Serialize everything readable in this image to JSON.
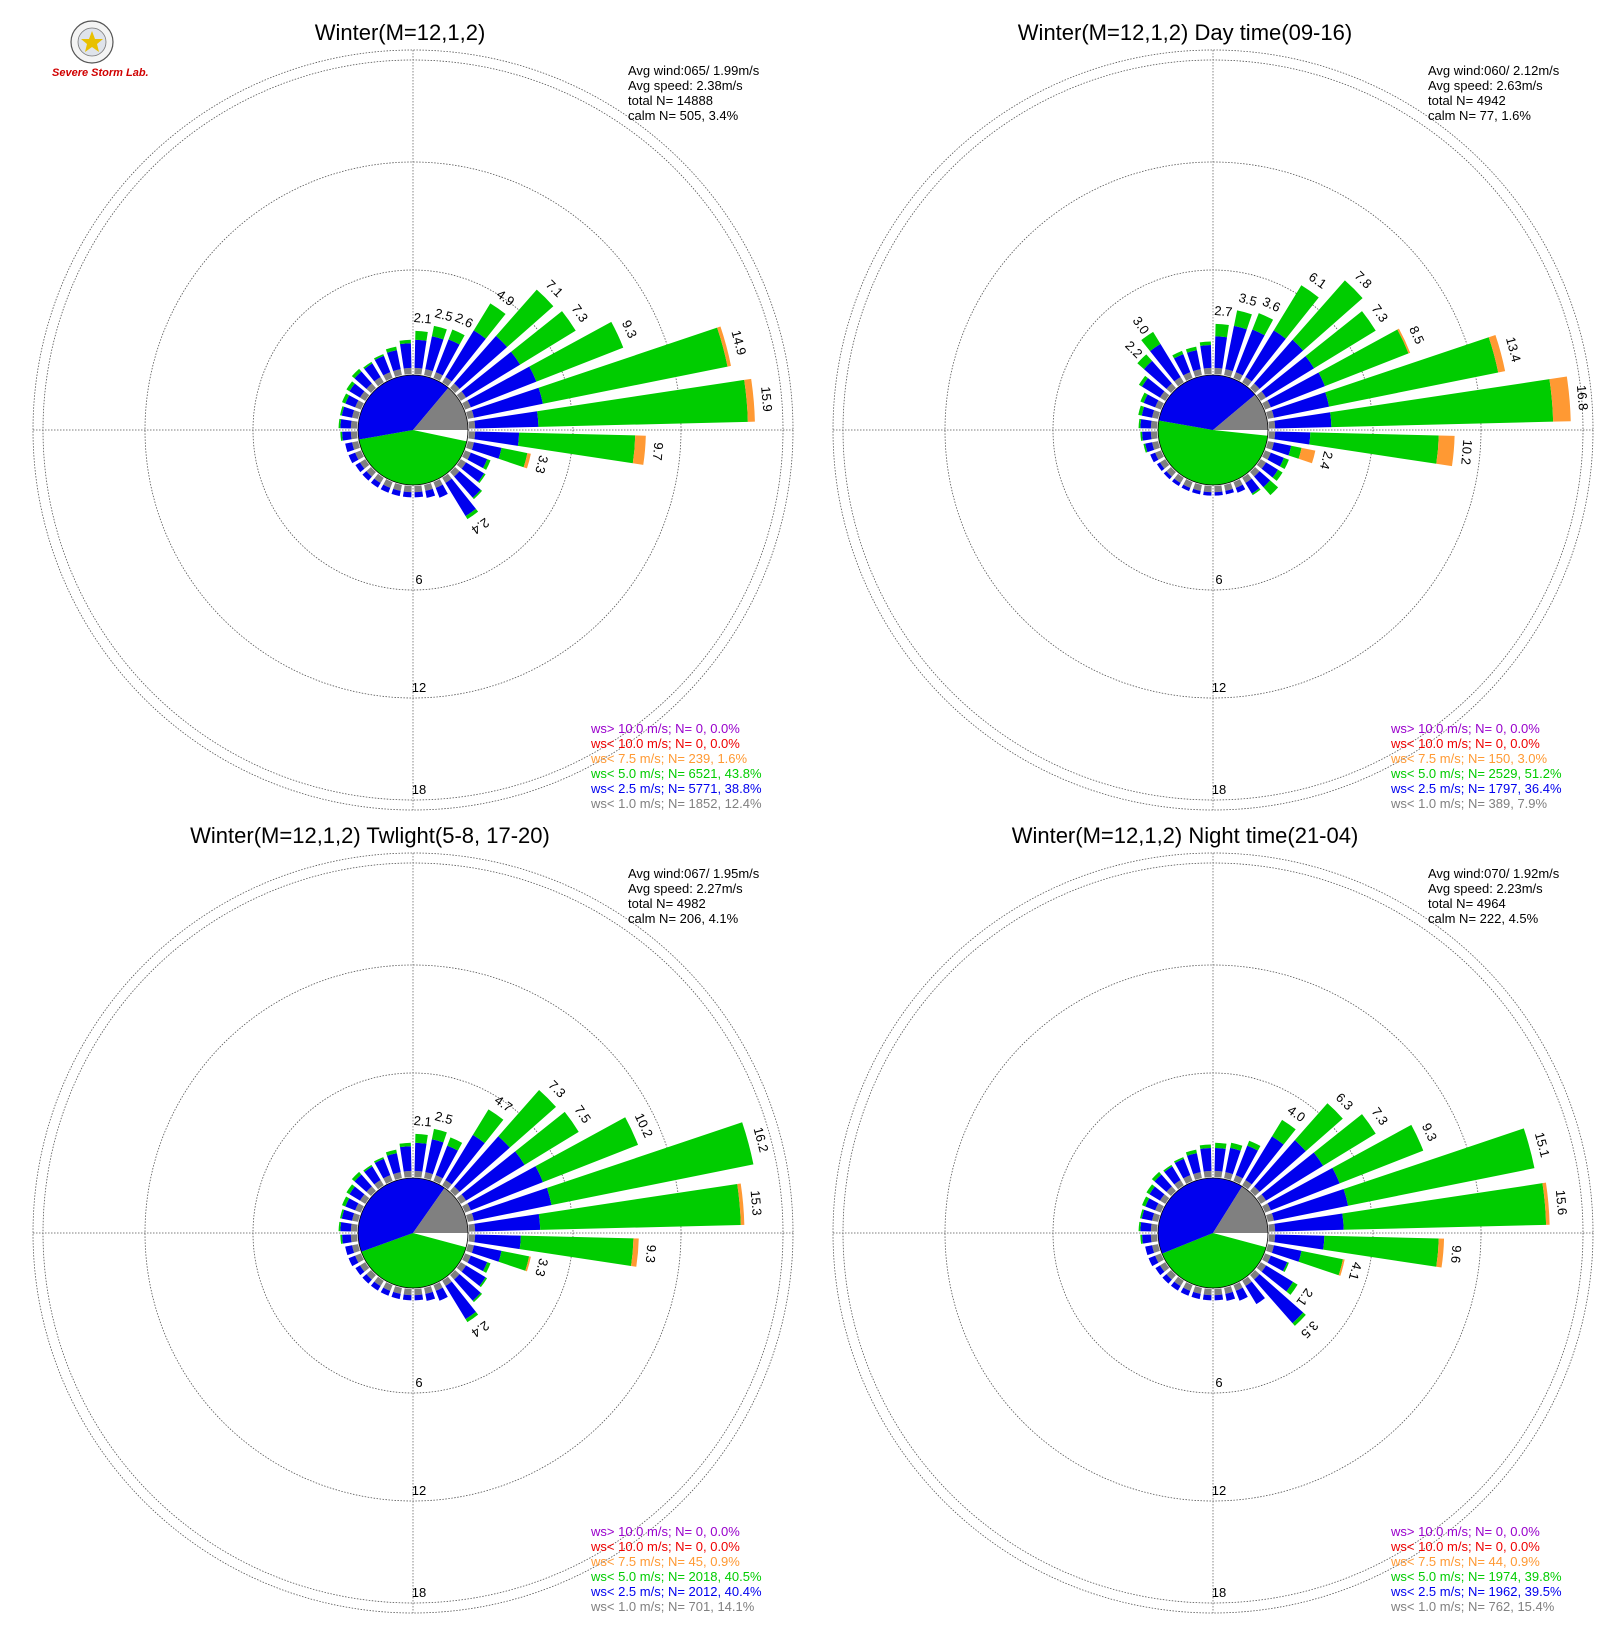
{
  "logo": {
    "text": "Severe Storm Lab."
  },
  "colors": {
    "calm": "#ffffff",
    "lt1": "#808080",
    "lt2_5": "#0000ee",
    "lt5": "#00cc00",
    "lt7_5": "#ff9933",
    "lt10": "#ee0000",
    "gt10": "#9900cc"
  },
  "chart_data": [
    {
      "type": "windrose",
      "title": "Winter(M=12,1,2)",
      "stats": {
        "avg_wind": "Avg wind:065/ 1.99m/s",
        "avg_speed": "Avg speed: 2.38m/s",
        "total": "total N=      14888",
        "calm": "calm N=    505,   3.4%"
      },
      "radial_ticks": [
        6,
        12,
        18
      ],
      "radial_max": 18,
      "legend": [
        {
          "label": "ws> 10.0 m/s; N=     0,  0.0%",
          "color": "#9900cc"
        },
        {
          "label": "ws< 10.0 m/s; N=     0,  0.0%",
          "color": "#ee0000"
        },
        {
          "label": "ws<  7.5 m/s; N=   239,  1.6%",
          "color": "#ff9933"
        },
        {
          "label": "ws<  5.0 m/s; N=  6521, 43.8%",
          "color": "#00cc00"
        },
        {
          "label": "ws<  2.5 m/s; N=  5771, 38.8%",
          "color": "#0000ee"
        },
        {
          "label": "ws<  1.0 m/s; N=  1852, 12.4%",
          "color": "#808080"
        }
      ],
      "center_pie": [
        {
          "color": "#ffffff",
          "start": 90,
          "end": 102
        },
        {
          "color": "#00cc00",
          "start": 102,
          "end": 260
        },
        {
          "color": "#0000ee",
          "start": 260,
          "end": 400
        },
        {
          "color": "#808080",
          "start": 400,
          "end": 450
        }
      ],
      "bars": [
        {
          "dir": 5,
          "blue": 1.6,
          "green": 0.5,
          "label": "2.1"
        },
        {
          "dir": 15,
          "blue": 1.9,
          "green": 0.6,
          "label": "2.5"
        },
        {
          "dir": 25,
          "blue": 2.0,
          "green": 0.6,
          "label": "2.6"
        },
        {
          "dir": 35,
          "blue": 3.1,
          "green": 1.8,
          "label": "4.9"
        },
        {
          "dir": 45,
          "blue": 3.6,
          "green": 3.5,
          "label": "7.1"
        },
        {
          "dir": 55,
          "blue": 3.6,
          "green": 3.7,
          "label": "7.3"
        },
        {
          "dir": 65,
          "blue": 4.0,
          "green": 5.3,
          "label": "9.3"
        },
        {
          "dir": 75,
          "blue": 4.0,
          "green": 10.7,
          "orange": 0.2,
          "label": "14.9"
        },
        {
          "dir": 85,
          "blue": 3.6,
          "green": 11.9,
          "orange": 0.4,
          "label": "15.9"
        },
        {
          "dir": 95,
          "blue": 2.5,
          "green": 6.6,
          "orange": 0.6,
          "label": "9.7"
        },
        {
          "dir": 105,
          "blue": 1.6,
          "green": 1.5,
          "orange": 0.2,
          "label": "3.3"
        },
        {
          "dir": 115,
          "blue": 1.0,
          "green": 0.2
        },
        {
          "dir": 125,
          "blue": 1.2,
          "green": 0.1
        },
        {
          "dir": 135,
          "blue": 1.6,
          "green": 0.1
        },
        {
          "dir": 145,
          "blue": 2.2,
          "green": 0.2,
          "label": "2.4"
        },
        {
          "dir": 155,
          "blue": 0.6
        },
        {
          "dir": 165,
          "blue": 0.4
        },
        {
          "dir": 175,
          "blue": 0.3
        },
        {
          "dir": 185,
          "blue": 0.3
        },
        {
          "dir": 195,
          "blue": 0.3
        },
        {
          "dir": 205,
          "blue": 0.3
        },
        {
          "dir": 215,
          "blue": 0.3
        },
        {
          "dir": 225,
          "blue": 0.3
        },
        {
          "dir": 235,
          "blue": 0.3
        },
        {
          "dir": 245,
          "blue": 0.4
        },
        {
          "dir": 255,
          "blue": 0.4
        },
        {
          "dir": 265,
          "blue": 0.5,
          "green": 0.1
        },
        {
          "dir": 275,
          "blue": 0.6,
          "green": 0.1
        },
        {
          "dir": 285,
          "blue": 0.6,
          "green": 0.1
        },
        {
          "dir": 295,
          "blue": 0.6,
          "green": 0.2
        },
        {
          "dir": 305,
          "blue": 0.7,
          "green": 0.2
        },
        {
          "dir": 315,
          "blue": 0.9,
          "green": 0.2
        },
        {
          "dir": 325,
          "blue": 0.9,
          "green": 0.1
        },
        {
          "dir": 335,
          "blue": 1.0,
          "green": 0.1
        },
        {
          "dir": 345,
          "blue": 1.1,
          "green": 0.2
        },
        {
          "dir": 355,
          "blue": 1.4,
          "green": 0.2
        }
      ]
    },
    {
      "type": "windrose",
      "title": "Winter(M=12,1,2) Day time(09-16)",
      "stats": {
        "avg_wind": "Avg wind:060/ 2.12m/s",
        "avg_speed": "Avg speed: 2.63m/s",
        "total": "total N=        4942",
        "calm": "calm N=     77,   1.6%"
      },
      "radial_ticks": [
        6,
        12,
        18
      ],
      "radial_max": 18,
      "legend": [
        {
          "label": "ws> 10.0 m/s; N=     0,  0.0%",
          "color": "#9900cc"
        },
        {
          "label": "ws< 10.0 m/s; N=     0,  0.0%",
          "color": "#ee0000"
        },
        {
          "label": "ws<  7.5 m/s; N=   150,  3.0%",
          "color": "#ff9933"
        },
        {
          "label": "ws<  5.0 m/s; N=  2529, 51.2%",
          "color": "#00cc00"
        },
        {
          "label": "ws<  2.5 m/s; N=  1797, 36.4%",
          "color": "#0000ee"
        },
        {
          "label": "ws<  1.0 m/s; N=   389,  7.9%",
          "color": "#808080"
        }
      ],
      "center_pie": [
        {
          "color": "#ffffff",
          "start": 90,
          "end": 96
        },
        {
          "color": "#00cc00",
          "start": 96,
          "end": 280
        },
        {
          "color": "#0000ee",
          "start": 280,
          "end": 410
        },
        {
          "color": "#808080",
          "start": 410,
          "end": 450
        }
      ],
      "bars": [
        {
          "dir": 5,
          "blue": 1.8,
          "green": 0.7,
          "label": "2.7"
        },
        {
          "dir": 15,
          "blue": 2.5,
          "green": 0.9,
          "label": "3.5"
        },
        {
          "dir": 25,
          "blue": 2.6,
          "green": 1.0,
          "label": "3.6"
        },
        {
          "dir": 35,
          "blue": 3.1,
          "green": 3.0,
          "label": "6.1"
        },
        {
          "dir": 45,
          "blue": 3.3,
          "green": 4.5,
          "label": "7.8"
        },
        {
          "dir": 55,
          "blue": 3.2,
          "green": 4.1,
          "label": "7.3"
        },
        {
          "dir": 65,
          "blue": 3.3,
          "green": 5.1,
          "orange": 0.1,
          "label": "8.5"
        },
        {
          "dir": 75,
          "blue": 3.2,
          "green": 9.8,
          "orange": 0.4,
          "label": "13.4"
        },
        {
          "dir": 85,
          "blue": 3.2,
          "green": 12.6,
          "orange": 1.0,
          "label": "16.8"
        },
        {
          "dir": 95,
          "blue": 2.0,
          "green": 7.3,
          "orange": 0.9,
          "label": "10.2"
        },
        {
          "dir": 105,
          "blue": 1.0,
          "green": 0.6,
          "orange": 0.8,
          "label": "2.4"
        },
        {
          "dir": 115,
          "blue": 0.8,
          "green": 0.3
        },
        {
          "dir": 125,
          "blue": 0.8,
          "green": 0.3
        },
        {
          "dir": 135,
          "blue": 0.8,
          "green": 0.6
        },
        {
          "dir": 145,
          "blue": 0.7,
          "green": 0.1
        },
        {
          "dir": 155,
          "blue": 0.3
        },
        {
          "dir": 165,
          "blue": 0.2
        },
        {
          "dir": 175,
          "blue": 0.2
        },
        {
          "dir": 185,
          "blue": 0.2
        },
        {
          "dir": 195,
          "blue": 0.2
        },
        {
          "dir": 205,
          "blue": 0.2
        },
        {
          "dir": 215,
          "blue": 0.2
        },
        {
          "dir": 225,
          "blue": 0.2
        },
        {
          "dir": 235,
          "blue": 0.2
        },
        {
          "dir": 245,
          "blue": 0.3
        },
        {
          "dir": 255,
          "blue": 0.4,
          "green": 0.1
        },
        {
          "dir": 265,
          "blue": 0.5,
          "green": 0.1
        },
        {
          "dir": 275,
          "blue": 0.6,
          "green": 0.1
        },
        {
          "dir": 285,
          "blue": 0.6,
          "green": 0.2
        },
        {
          "dir": 295,
          "blue": 0.7,
          "green": 0.2
        },
        {
          "dir": 305,
          "blue": 1.2,
          "green": 0.2
        },
        {
          "dir": 315,
          "blue": 1.7,
          "green": 0.5,
          "label": "2.2"
        },
        {
          "dir": 325,
          "blue": 2.2,
          "green": 0.8,
          "label": "3.0"
        },
        {
          "dir": 335,
          "blue": 1.1,
          "green": 0.2
        },
        {
          "dir": 345,
          "blue": 1.1,
          "green": 0.2
        },
        {
          "dir": 355,
          "blue": 1.3,
          "green": 0.2
        }
      ]
    },
    {
      "type": "windrose",
      "title": "Winter(M=12,1,2) Twlight(5-8, 17-20)",
      "stats": {
        "avg_wind": "Avg wind:067/ 1.95m/s",
        "avg_speed": "Avg speed: 2.27m/s",
        "total": "total N=        4982",
        "calm": "calm N=    206,   4.1%"
      },
      "radial_ticks": [
        6,
        12,
        18
      ],
      "radial_max": 18,
      "legend": [
        {
          "label": "ws> 10.0 m/s; N=     0,  0.0%",
          "color": "#9900cc"
        },
        {
          "label": "ws< 10.0 m/s; N=     0,  0.0%",
          "color": "#ee0000"
        },
        {
          "label": "ws<  7.5 m/s; N=    45,  0.9%",
          "color": "#ff9933"
        },
        {
          "label": "ws<  5.0 m/s; N=  2018, 40.5%",
          "color": "#00cc00"
        },
        {
          "label": "ws<  2.5 m/s; N=  2012, 40.4%",
          "color": "#0000ee"
        },
        {
          "label": "ws<  1.0 m/s; N=   701, 14.1%",
          "color": "#808080"
        }
      ],
      "center_pie": [
        {
          "color": "#ffffff",
          "start": 90,
          "end": 105
        },
        {
          "color": "#00cc00",
          "start": 105,
          "end": 250
        },
        {
          "color": "#0000ee",
          "start": 250,
          "end": 395
        },
        {
          "color": "#808080",
          "start": 395,
          "end": 450
        }
      ],
      "bars": [
        {
          "dir": 5,
          "blue": 1.6,
          "green": 0.5,
          "label": "2.1"
        },
        {
          "dir": 15,
          "blue": 1.9,
          "green": 0.6,
          "label": "2.5"
        },
        {
          "dir": 25,
          "blue": 1.8,
          "green": 0.5
        },
        {
          "dir": 35,
          "blue": 3.0,
          "green": 1.7,
          "label": "4.7"
        },
        {
          "dir": 45,
          "blue": 3.8,
          "green": 3.5,
          "label": "7.3"
        },
        {
          "dir": 55,
          "blue": 3.9,
          "green": 3.6,
          "label": "7.5"
        },
        {
          "dir": 65,
          "blue": 4.4,
          "green": 5.8,
          "label": "10.2"
        },
        {
          "dir": 75,
          "blue": 4.5,
          "green": 11.7,
          "label": "16.2"
        },
        {
          "dir": 85,
          "blue": 3.7,
          "green": 11.4,
          "orange": 0.2,
          "label": "15.3"
        },
        {
          "dir": 95,
          "blue": 2.6,
          "green": 6.4,
          "orange": 0.3,
          "label": "9.3"
        },
        {
          "dir": 105,
          "blue": 1.6,
          "green": 1.6,
          "orange": 0.1,
          "label": "3.3"
        },
        {
          "dir": 115,
          "blue": 1.0,
          "green": 0.2
        },
        {
          "dir": 125,
          "blue": 1.3,
          "green": 0.1
        },
        {
          "dir": 135,
          "blue": 1.6,
          "green": 0.1
        },
        {
          "dir": 145,
          "blue": 2.2,
          "green": 0.2,
          "label": "2.4"
        },
        {
          "dir": 155,
          "blue": 0.6
        },
        {
          "dir": 165,
          "blue": 0.4
        },
        {
          "dir": 175,
          "blue": 0.3
        },
        {
          "dir": 185,
          "blue": 0.3
        },
        {
          "dir": 195,
          "blue": 0.3
        },
        {
          "dir": 205,
          "blue": 0.3
        },
        {
          "dir": 215,
          "blue": 0.3
        },
        {
          "dir": 225,
          "blue": 0.3
        },
        {
          "dir": 235,
          "blue": 0.3
        },
        {
          "dir": 245,
          "blue": 0.4
        },
        {
          "dir": 255,
          "blue": 0.4
        },
        {
          "dir": 265,
          "blue": 0.5,
          "green": 0.1
        },
        {
          "dir": 275,
          "blue": 0.6,
          "green": 0.1
        },
        {
          "dir": 285,
          "blue": 0.6,
          "green": 0.1
        },
        {
          "dir": 295,
          "blue": 0.6,
          "green": 0.2
        },
        {
          "dir": 305,
          "blue": 0.7,
          "green": 0.2
        },
        {
          "dir": 315,
          "blue": 0.9,
          "green": 0.2
        },
        {
          "dir": 325,
          "blue": 0.9,
          "green": 0.1
        },
        {
          "dir": 335,
          "blue": 1.0,
          "green": 0.1
        },
        {
          "dir": 345,
          "blue": 1.1,
          "green": 0.2
        },
        {
          "dir": 355,
          "blue": 1.4,
          "green": 0.2
        }
      ]
    },
    {
      "type": "windrose",
      "title": "Winter(M=12,1,2) Night time(21-04)",
      "stats": {
        "avg_wind": "Avg wind:070/ 1.92m/s",
        "avg_speed": "Avg speed: 2.23m/s",
        "total": "total N=        4964",
        "calm": "calm N=    222,   4.5%"
      },
      "radial_ticks": [
        6,
        12,
        18
      ],
      "radial_max": 18,
      "legend": [
        {
          "label": "ws> 10.0 m/s; N=     0,  0.0%",
          "color": "#9900cc"
        },
        {
          "label": "ws< 10.0 m/s; N=     0,  0.0%",
          "color": "#ee0000"
        },
        {
          "label": "ws<  7.5 m/s; N=    44,  0.9%",
          "color": "#ff9933"
        },
        {
          "label": "ws<  5.0 m/s; N=  1974, 39.8%",
          "color": "#00cc00"
        },
        {
          "label": "ws<  2.5 m/s; N=  1962, 39.5%",
          "color": "#0000ee"
        },
        {
          "label": "ws<  1.0 m/s; N=   762, 15.4%",
          "color": "#808080"
        }
      ],
      "center_pie": [
        {
          "color": "#ffffff",
          "start": 90,
          "end": 105
        },
        {
          "color": "#00cc00",
          "start": 105,
          "end": 248
        },
        {
          "color": "#0000ee",
          "start": 248,
          "end": 392
        },
        {
          "color": "#808080",
          "start": 392,
          "end": 450
        }
      ],
      "bars": [
        {
          "dir": 5,
          "blue": 1.3,
          "green": 0.3
        },
        {
          "dir": 15,
          "blue": 1.4,
          "green": 0.3
        },
        {
          "dir": 25,
          "blue": 1.8,
          "green": 0.3
        },
        {
          "dir": 35,
          "blue": 2.9,
          "green": 1.1,
          "label": "4.0"
        },
        {
          "dir": 45,
          "blue": 3.5,
          "green": 2.8,
          "label": "6.3"
        },
        {
          "dir": 55,
          "blue": 3.8,
          "green": 3.5,
          "label": "7.3"
        },
        {
          "dir": 65,
          "blue": 4.2,
          "green": 5.1,
          "label": "9.3"
        },
        {
          "dir": 75,
          "blue": 4.3,
          "green": 10.8,
          "label": "15.1"
        },
        {
          "dir": 85,
          "blue": 3.9,
          "green": 11.5,
          "orange": 0.2,
          "label": "15.6"
        },
        {
          "dir": 95,
          "blue": 2.8,
          "green": 6.5,
          "orange": 0.3,
          "label": "9.6"
        },
        {
          "dir": 105,
          "blue": 1.6,
          "green": 2.4,
          "orange": 0.1,
          "label": "4.1"
        },
        {
          "dir": 115,
          "blue": 1.0,
          "green": 0.1
        },
        {
          "dir": 125,
          "blue": 1.8,
          "green": 0.3,
          "label": "2.1"
        },
        {
          "dir": 135,
          "blue": 3.3,
          "green": 0.2,
          "label": "3.5"
        },
        {
          "dir": 145,
          "blue": 1.2
        },
        {
          "dir": 155,
          "blue": 0.6
        },
        {
          "dir": 165,
          "blue": 0.4
        },
        {
          "dir": 175,
          "blue": 0.3
        },
        {
          "dir": 185,
          "blue": 0.3
        },
        {
          "dir": 195,
          "blue": 0.3
        },
        {
          "dir": 205,
          "blue": 0.3
        },
        {
          "dir": 215,
          "blue": 0.3
        },
        {
          "dir": 225,
          "blue": 0.3
        },
        {
          "dir": 235,
          "blue": 0.3
        },
        {
          "dir": 245,
          "blue": 0.4
        },
        {
          "dir": 255,
          "blue": 0.4
        },
        {
          "dir": 265,
          "blue": 0.5,
          "green": 0.1
        },
        {
          "dir": 275,
          "blue": 0.6,
          "green": 0.1
        },
        {
          "dir": 285,
          "blue": 0.6,
          "green": 0.1
        },
        {
          "dir": 295,
          "blue": 0.6,
          "green": 0.2
        },
        {
          "dir": 305,
          "blue": 0.7,
          "green": 0.2
        },
        {
          "dir": 315,
          "blue": 0.9,
          "green": 0.2
        },
        {
          "dir": 325,
          "blue": 0.9,
          "green": 0.1
        },
        {
          "dir": 335,
          "blue": 1.0,
          "green": 0.1
        },
        {
          "dir": 345,
          "blue": 1.1,
          "green": 0.2
        },
        {
          "dir": 355,
          "blue": 1.3,
          "green": 0.2
        }
      ]
    }
  ]
}
